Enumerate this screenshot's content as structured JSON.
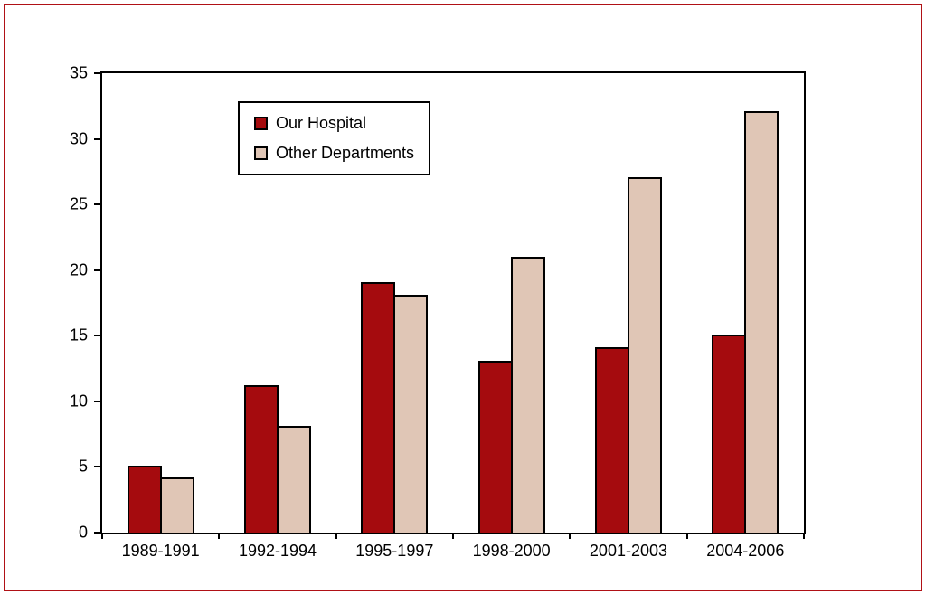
{
  "frame": {
    "border_color": "#b01116",
    "background": "#ffffff"
  },
  "chart_data": {
    "type": "bar",
    "title": "",
    "xlabel": "",
    "ylabel": "",
    "categories": [
      "1989-1991",
      "1992-1994",
      "1995-1997",
      "1998-2000",
      "2001-2003",
      "2004-2006"
    ],
    "series": [
      {
        "name": "Our Hospital",
        "color": "#a50b0e",
        "values": [
          5.1,
          11.2,
          19.1,
          13.1,
          14.1,
          15.1
        ]
      },
      {
        "name": "Other Departments",
        "color": "#e0c6b6",
        "values": [
          4.2,
          8.1,
          18.1,
          21.0,
          27.1,
          32.1
        ]
      }
    ],
    "ylim": [
      0,
      35
    ],
    "yticks": [
      0,
      5,
      10,
      15,
      20,
      25,
      30,
      35
    ],
    "grid": false,
    "legend_position": "top-left-inside"
  }
}
